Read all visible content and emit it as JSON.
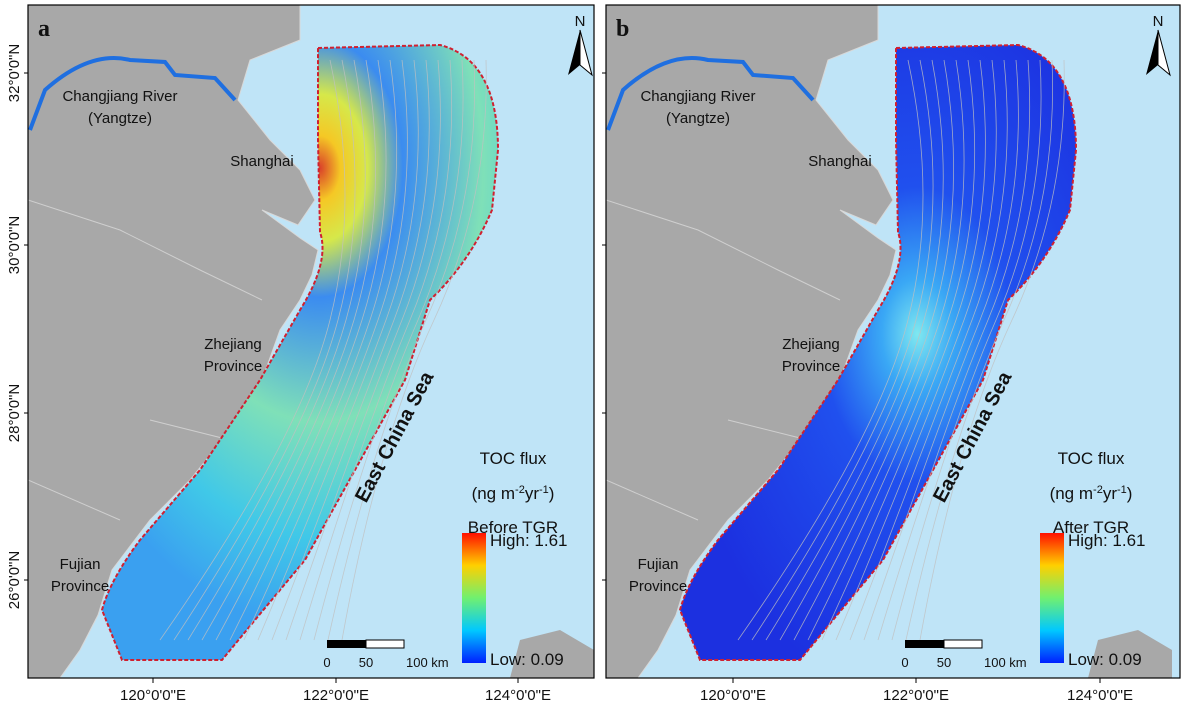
{
  "x_axis_labels": [
    "120°0'0\"E",
    "122°0'0\"E",
    "124°0'0\"E"
  ],
  "y_axis_labels": [
    "32°0'0\"N",
    "30°0'0\"N",
    "28°0'0\"N",
    "26°0'0\"N"
  ],
  "panels": [
    {
      "letter": "a",
      "river_label": [
        "Changjiang River",
        "(Yangtze)"
      ],
      "city_label": "Shanghai",
      "province_labels": [
        [
          "Zhejiang",
          "Province"
        ],
        [
          "Fujian",
          "Province"
        ]
      ],
      "sea_label": "East China Sea",
      "legend": {
        "title": "TOC flux",
        "unit_parts": [
          "(ng m",
          "-2",
          "yr",
          "-1",
          ")"
        ],
        "period": "Before TGR",
        "high": "High: 1.61",
        "low": "Low: 0.09"
      },
      "scale": [
        "0",
        "50",
        "100 km"
      ],
      "north": "N"
    },
    {
      "letter": "b",
      "river_label": [
        "Changjiang River",
        "(Yangtze)"
      ],
      "city_label": "Shanghai",
      "province_labels": [
        [
          "Zhejiang",
          "Province"
        ],
        [
          "Fujian",
          "Province"
        ]
      ],
      "sea_label": "East China Sea",
      "legend": {
        "title": "TOC flux",
        "unit_parts": [
          "(ng m",
          "-2",
          "yr",
          "-1",
          ")"
        ],
        "period": "After TGR",
        "high": "High: 1.61",
        "low": "Low: 0.09"
      },
      "scale": [
        "0",
        "50",
        "100 km"
      ],
      "north": "N"
    }
  ]
}
